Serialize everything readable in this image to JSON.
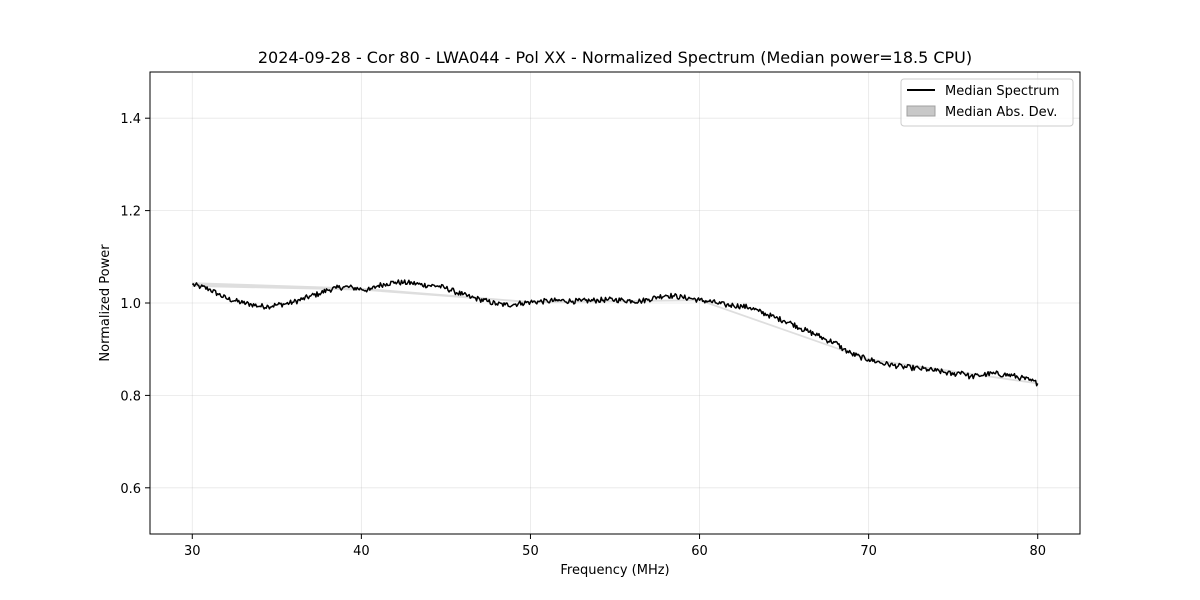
{
  "chart_data": {
    "type": "line",
    "title": "2024-09-28 - Cor 80 - LWA044 - Pol XX - Normalized Spectrum (Median power=18.5 CPU)",
    "xlabel": "Frequency (MHz)",
    "ylabel": "Normalized Power",
    "xlim": [
      27.5,
      82.5
    ],
    "ylim": [
      0.5,
      1.5
    ],
    "xticks": [
      30,
      40,
      50,
      60,
      70,
      80
    ],
    "yticks": [
      0.6,
      0.8,
      1.0,
      1.2,
      1.4
    ],
    "xtick_labels": [
      "30",
      "40",
      "50",
      "60",
      "70",
      "80"
    ],
    "ytick_labels": [
      "0.6",
      "0.8",
      "1.0",
      "1.2",
      "1.4"
    ],
    "grid": true,
    "legend": {
      "position": "top-right",
      "entries": [
        {
          "label": "Median Spectrum",
          "kind": "line",
          "color": "#000000"
        },
        {
          "label": "Median Abs. Dev.",
          "kind": "patch",
          "color": "#c8c8c8"
        }
      ]
    },
    "series": [
      {
        "name": "Median Spectrum",
        "color": "#000000",
        "x": [
          30.0,
          30.5,
          31.0,
          31.5,
          32.0,
          32.5,
          33.0,
          33.5,
          34.0,
          34.5,
          35.0,
          35.5,
          36.0,
          36.5,
          37.0,
          37.5,
          38.0,
          38.5,
          39.0,
          39.5,
          40.0,
          40.5,
          41.0,
          41.5,
          42.0,
          42.5,
          43.0,
          43.5,
          44.0,
          44.5,
          45.0,
          45.5,
          46.0,
          46.5,
          47.0,
          47.5,
          48.0,
          48.5,
          49.0,
          49.5,
          50.0,
          50.5,
          51.0,
          51.5,
          52.0,
          52.5,
          53.0,
          53.5,
          54.0,
          54.5,
          55.0,
          55.5,
          56.0,
          56.5,
          57.0,
          57.5,
          58.0,
          58.5,
          59.0,
          59.5,
          60.0,
          60.5,
          61.0,
          61.5,
          62.0,
          62.5,
          63.0,
          63.5,
          64.0,
          64.5,
          65.0,
          65.5,
          66.0,
          66.5,
          67.0,
          67.5,
          68.0,
          68.5,
          69.0,
          69.5,
          70.0,
          70.5,
          71.0,
          71.5,
          72.0,
          72.5,
          73.0,
          73.5,
          74.0,
          74.5,
          75.0,
          75.5,
          76.0,
          76.5,
          77.0,
          77.5,
          78.0,
          78.5,
          79.0,
          79.5,
          80.0
        ],
        "values": [
          1.04,
          1.035,
          1.03,
          1.02,
          1.01,
          1.005,
          1.0,
          0.997,
          0.993,
          0.993,
          0.996,
          0.998,
          1.002,
          1.008,
          1.015,
          1.02,
          1.028,
          1.032,
          1.035,
          1.033,
          1.03,
          1.028,
          1.038,
          1.042,
          1.045,
          1.044,
          1.043,
          1.04,
          1.038,
          1.037,
          1.032,
          1.025,
          1.018,
          1.012,
          1.008,
          1.003,
          0.998,
          0.996,
          0.997,
          1.0,
          1.002,
          1.003,
          1.004,
          1.005,
          1.005,
          1.004,
          1.004,
          1.005,
          1.006,
          1.007,
          1.007,
          1.006,
          1.005,
          1.004,
          1.008,
          1.013,
          1.017,
          1.015,
          1.012,
          1.01,
          1.006,
          1.004,
          1.0,
          0.996,
          0.995,
          0.993,
          0.99,
          0.982,
          0.975,
          0.968,
          0.962,
          0.955,
          0.945,
          0.937,
          0.93,
          0.92,
          0.915,
          0.9,
          0.89,
          0.883,
          0.878,
          0.873,
          0.868,
          0.865,
          0.862,
          0.86,
          0.858,
          0.856,
          0.853,
          0.85,
          0.845,
          0.852,
          0.84,
          0.843,
          0.846,
          0.847,
          0.845,
          0.843,
          0.838,
          0.833,
          0.826
        ]
      },
      {
        "name": "Median Abs. Dev.",
        "color": "#c8c8c8",
        "x": [
          30.0,
          40.0,
          50.0,
          60.0,
          70.0,
          80.0
        ],
        "lower": [
          1.035,
          1.027,
          1.0,
          1.004,
          0.876,
          0.824
        ],
        "upper": [
          1.045,
          1.033,
          1.004,
          1.008,
          0.88,
          0.828
        ]
      }
    ]
  }
}
